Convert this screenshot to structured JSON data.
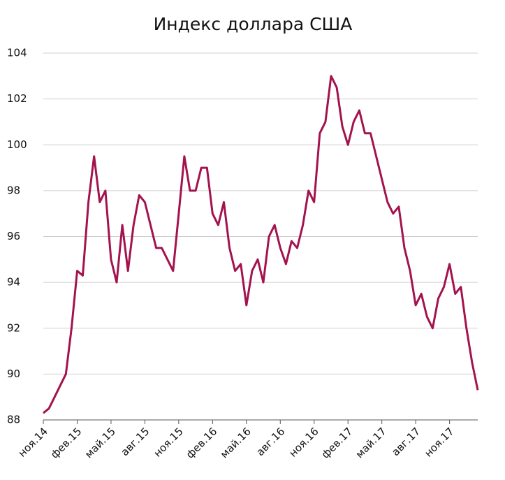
{
  "chart_data": {
    "type": "line",
    "title": "Индекс доллара США",
    "categories": [
      "ноя.14",
      null,
      null,
      null,
      null,
      null,
      "фев.15",
      null,
      null,
      null,
      null,
      null,
      "май.15",
      null,
      null,
      null,
      null,
      null,
      "авг.15",
      null,
      null,
      null,
      null,
      null,
      "ноя.15",
      null,
      null,
      null,
      null,
      null,
      "фев.16",
      null,
      null,
      null,
      null,
      null,
      "май.16",
      null,
      null,
      null,
      null,
      null,
      "авг.16",
      null,
      null,
      null,
      null,
      null,
      "ноя.16",
      null,
      null,
      null,
      null,
      null,
      "фев.17",
      null,
      null,
      null,
      null,
      null,
      "май.17",
      null,
      null,
      null,
      null,
      null,
      "авг.17",
      null,
      null,
      null,
      null,
      null,
      "ноя.17",
      null,
      null,
      null,
      null,
      null
    ],
    "values": [
      88.3,
      88.5,
      89.0,
      89.5,
      90.0,
      92.0,
      94.5,
      94.3,
      97.5,
      99.5,
      97.5,
      98.0,
      95.0,
      94.0,
      96.5,
      94.5,
      96.5,
      97.8,
      97.5,
      96.5,
      95.5,
      95.5,
      95.0,
      94.5,
      97.0,
      99.5,
      98.0,
      98.0,
      99.0,
      99.0,
      97.0,
      96.5,
      97.5,
      95.5,
      94.5,
      94.8,
      93.0,
      94.5,
      95.0,
      94.0,
      96.0,
      96.5,
      95.5,
      94.8,
      95.8,
      95.5,
      96.5,
      98.0,
      97.5,
      100.5,
      101.0,
      103.0,
      102.5,
      100.8,
      100.0,
      101.0,
      101.5,
      100.5,
      100.5,
      99.5,
      98.5,
      97.5,
      97.0,
      97.3,
      95.5,
      94.5,
      93.0,
      93.5,
      92.5,
      92.0,
      93.3,
      93.8,
      94.8,
      93.5,
      93.8,
      92.0,
      90.5,
      89.3
    ],
    "color": "#a3134e",
    "ylim": [
      88,
      104
    ],
    "yticks": [
      88,
      90,
      92,
      94,
      96,
      98,
      100,
      102,
      104
    ],
    "grid": true
  }
}
